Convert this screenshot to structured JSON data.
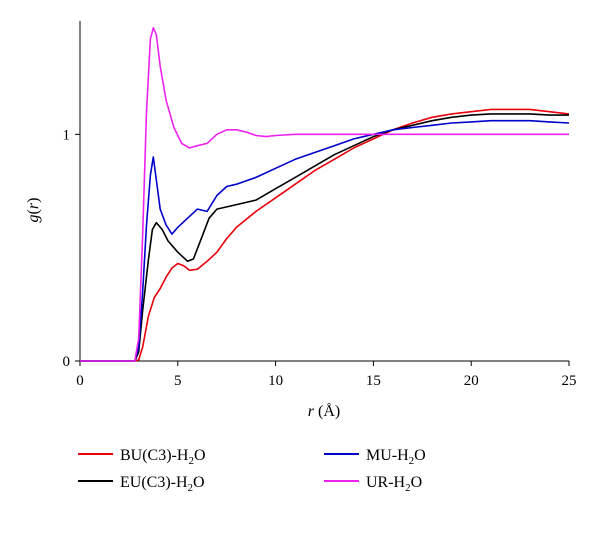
{
  "chart_data": {
    "type": "line",
    "xlabel": {
      "var": "r",
      "unit": " (Å)"
    },
    "ylabel": {
      "func": "g",
      "paren_open": "(",
      "var": "r",
      "paren_close": ")"
    },
    "xlim": [
      0,
      25
    ],
    "ylim": [
      0,
      1.5
    ],
    "xticks": [
      0,
      5,
      10,
      15,
      20,
      25
    ],
    "yticks": [
      0,
      1
    ],
    "grid": false,
    "legend_position": "bottom",
    "series": [
      {
        "name": "BU(C3)-H2O",
        "legend_base": "BU(C3)-H",
        "legend_sub": "2",
        "legend_tail": "O",
        "color": "#e8000b",
        "x": [
          0,
          2.8,
          3.0,
          3.2,
          3.5,
          3.8,
          4.1,
          4.4,
          4.7,
          5.0,
          5.3,
          5.6,
          6.0,
          6.5,
          7.0,
          7.5,
          8,
          9,
          10,
          11,
          12,
          13,
          14,
          15,
          16,
          17,
          18,
          19,
          20,
          21,
          22,
          23,
          24,
          25
        ],
        "y": [
          0,
          0,
          0.005,
          0.06,
          0.2,
          0.28,
          0.32,
          0.37,
          0.41,
          0.43,
          0.42,
          0.4,
          0.405,
          0.44,
          0.48,
          0.54,
          0.59,
          0.66,
          0.72,
          0.78,
          0.84,
          0.89,
          0.94,
          0.98,
          1.02,
          1.05,
          1.075,
          1.09,
          1.1,
          1.11,
          1.11,
          1.11,
          1.1,
          1.09
        ]
      },
      {
        "name": "EU(C3)-H2O",
        "legend_base": "EU(C3)-H",
        "legend_sub": "2",
        "legend_tail": "O",
        "color": "#000000",
        "x": [
          0,
          2.8,
          3.0,
          3.2,
          3.5,
          3.7,
          3.9,
          4.2,
          4.5,
          5.0,
          5.5,
          5.8,
          6.2,
          6.6,
          7.0,
          7.5,
          8,
          9,
          10,
          11,
          12,
          13,
          14,
          15,
          16,
          17,
          18,
          19,
          20,
          21,
          22,
          23,
          24,
          25
        ],
        "y": [
          0,
          0,
          0.04,
          0.22,
          0.45,
          0.58,
          0.61,
          0.58,
          0.53,
          0.48,
          0.44,
          0.45,
          0.54,
          0.63,
          0.67,
          0.68,
          0.69,
          0.71,
          0.76,
          0.81,
          0.86,
          0.91,
          0.95,
          0.99,
          1.02,
          1.04,
          1.06,
          1.075,
          1.085,
          1.09,
          1.09,
          1.09,
          1.085,
          1.085
        ]
      },
      {
        "name": "MU-H2O",
        "legend_base": "MU-H",
        "legend_sub": "2",
        "legend_tail": "O",
        "color": "#0000cc",
        "x": [
          0,
          2.8,
          3.0,
          3.2,
          3.4,
          3.6,
          3.75,
          3.9,
          4.1,
          4.4,
          4.7,
          5.0,
          5.5,
          6.0,
          6.5,
          7.0,
          7.5,
          8,
          9,
          10,
          11,
          12,
          13,
          14,
          15,
          16,
          17,
          18,
          19,
          20,
          21,
          22,
          23,
          24,
          25
        ],
        "y": [
          0,
          0,
          0.06,
          0.3,
          0.6,
          0.82,
          0.9,
          0.8,
          0.67,
          0.6,
          0.56,
          0.59,
          0.63,
          0.67,
          0.66,
          0.73,
          0.77,
          0.78,
          0.81,
          0.85,
          0.89,
          0.92,
          0.95,
          0.98,
          1.0,
          1.02,
          1.03,
          1.04,
          1.05,
          1.055,
          1.06,
          1.06,
          1.06,
          1.055,
          1.05
        ]
      },
      {
        "name": "UR-H2O",
        "legend_base": "UR-H",
        "legend_sub": "2",
        "legend_tail": "O",
        "color": "#ee22ee",
        "x": [
          0,
          2.8,
          3.0,
          3.2,
          3.4,
          3.6,
          3.75,
          3.9,
          4.1,
          4.4,
          4.8,
          5.2,
          5.6,
          6.0,
          6.5,
          7.0,
          7.5,
          8.0,
          8.5,
          9.0,
          9.5,
          10,
          11,
          12,
          13,
          14,
          15,
          16,
          17,
          18,
          19,
          20,
          21,
          22,
          23,
          24,
          25
        ],
        "y": [
          0,
          0,
          0.1,
          0.55,
          1.1,
          1.42,
          1.47,
          1.44,
          1.3,
          1.15,
          1.03,
          0.96,
          0.94,
          0.95,
          0.96,
          1.0,
          1.02,
          1.02,
          1.01,
          0.995,
          0.99,
          0.995,
          1.0,
          1.0,
          1.0,
          1.0,
          1.0,
          1.0,
          1.0,
          1.0,
          1.0,
          1.0,
          1.0,
          1.0,
          1.0,
          1.0,
          1.0
        ]
      }
    ]
  }
}
